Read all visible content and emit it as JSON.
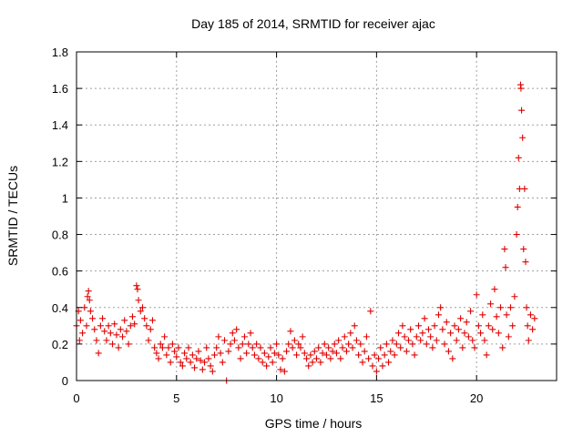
{
  "chart_data": {
    "type": "scatter",
    "title": "Day 185 of 2014, SRMTID for receiver ajac",
    "xlabel": "GPS time / hours",
    "ylabel": "SRMTID / TECUs",
    "xlim": [
      0,
      24
    ],
    "ylim": [
      0,
      1.8
    ],
    "xticks": [
      0,
      5,
      10,
      15,
      20
    ],
    "xtick_labels": [
      "0",
      "5",
      "10",
      "15",
      "20"
    ],
    "yticks": [
      0,
      0.2,
      0.4,
      0.6,
      0.8,
      1.0,
      1.2,
      1.4,
      1.6,
      1.8
    ],
    "ytick_labels": [
      "0",
      "0.2",
      "0.4",
      "0.6",
      "0.8",
      "1",
      "1.2",
      "1.4",
      "1.6",
      "1.8"
    ],
    "grid": true,
    "series": [
      {
        "name": "SRMTID",
        "marker": "plus",
        "color": "#e00000",
        "points": [
          [
            0.0,
            0.3
          ],
          [
            0.1,
            0.38
          ],
          [
            0.15,
            0.22
          ],
          [
            0.2,
            0.33
          ],
          [
            0.3,
            0.26
          ],
          [
            0.4,
            0.4
          ],
          [
            0.5,
            0.3
          ],
          [
            0.55,
            0.46
          ],
          [
            0.6,
            0.49
          ],
          [
            0.65,
            0.44
          ],
          [
            0.7,
            0.38
          ],
          [
            0.8,
            0.34
          ],
          [
            0.9,
            0.28
          ],
          [
            1.0,
            0.22
          ],
          [
            1.1,
            0.15
          ],
          [
            1.2,
            0.3
          ],
          [
            1.3,
            0.34
          ],
          [
            1.4,
            0.27
          ],
          [
            1.5,
            0.22
          ],
          [
            1.6,
            0.3
          ],
          [
            1.7,
            0.26
          ],
          [
            1.8,
            0.2
          ],
          [
            1.9,
            0.31
          ],
          [
            2.0,
            0.25
          ],
          [
            2.1,
            0.18
          ],
          [
            2.2,
            0.28
          ],
          [
            2.3,
            0.24
          ],
          [
            2.4,
            0.33
          ],
          [
            2.5,
            0.27
          ],
          [
            2.6,
            0.2
          ],
          [
            2.7,
            0.3
          ],
          [
            2.8,
            0.35
          ],
          [
            2.9,
            0.31
          ],
          [
            3.0,
            0.52
          ],
          [
            3.05,
            0.5
          ],
          [
            3.1,
            0.44
          ],
          [
            3.2,
            0.38
          ],
          [
            3.3,
            0.4
          ],
          [
            3.4,
            0.34
          ],
          [
            3.5,
            0.3
          ],
          [
            3.6,
            0.22
          ],
          [
            3.7,
            0.28
          ],
          [
            3.8,
            0.33
          ],
          [
            3.9,
            0.18
          ],
          [
            4.0,
            0.15
          ],
          [
            4.1,
            0.12
          ],
          [
            4.2,
            0.2
          ],
          [
            4.3,
            0.18
          ],
          [
            4.4,
            0.24
          ],
          [
            4.5,
            0.14
          ],
          [
            4.6,
            0.18
          ],
          [
            4.7,
            0.1
          ],
          [
            4.8,
            0.2
          ],
          [
            4.9,
            0.16
          ],
          [
            5.0,
            0.13
          ],
          [
            5.1,
            0.18
          ],
          [
            5.2,
            0.1
          ],
          [
            5.3,
            0.08
          ],
          [
            5.4,
            0.15
          ],
          [
            5.5,
            0.12
          ],
          [
            5.6,
            0.18
          ],
          [
            5.7,
            0.1
          ],
          [
            5.8,
            0.14
          ],
          [
            5.9,
            0.07
          ],
          [
            6.0,
            0.12
          ],
          [
            6.1,
            0.16
          ],
          [
            6.2,
            0.11
          ],
          [
            6.3,
            0.06
          ],
          [
            6.4,
            0.1
          ],
          [
            6.5,
            0.18
          ],
          [
            6.6,
            0.12
          ],
          [
            6.7,
            0.08
          ],
          [
            6.8,
            0.05
          ],
          [
            6.9,
            0.14
          ],
          [
            7.0,
            0.18
          ],
          [
            7.1,
            0.24
          ],
          [
            7.2,
            0.15
          ],
          [
            7.3,
            0.1
          ],
          [
            7.4,
            0.22
          ],
          [
            7.5,
            0.0
          ],
          [
            7.6,
            0.16
          ],
          [
            7.7,
            0.2
          ],
          [
            7.8,
            0.26
          ],
          [
            7.9,
            0.22
          ],
          [
            8.0,
            0.28
          ],
          [
            8.1,
            0.18
          ],
          [
            8.2,
            0.12
          ],
          [
            8.3,
            0.2
          ],
          [
            8.4,
            0.24
          ],
          [
            8.5,
            0.15
          ],
          [
            8.6,
            0.2
          ],
          [
            8.7,
            0.26
          ],
          [
            8.8,
            0.18
          ],
          [
            8.9,
            0.14
          ],
          [
            9.0,
            0.2
          ],
          [
            9.1,
            0.12
          ],
          [
            9.2,
            0.18
          ],
          [
            9.3,
            0.1
          ],
          [
            9.4,
            0.15
          ],
          [
            9.5,
            0.08
          ],
          [
            9.6,
            0.13
          ],
          [
            9.7,
            0.18
          ],
          [
            9.8,
            0.1
          ],
          [
            9.9,
            0.15
          ],
          [
            10.0,
            0.2
          ],
          [
            10.1,
            0.14
          ],
          [
            10.2,
            0.06
          ],
          [
            10.3,
            0.12
          ],
          [
            10.4,
            0.05
          ],
          [
            10.5,
            0.16
          ],
          [
            10.6,
            0.2
          ],
          [
            10.7,
            0.27
          ],
          [
            10.8,
            0.18
          ],
          [
            10.9,
            0.22
          ],
          [
            11.0,
            0.14
          ],
          [
            11.1,
            0.2
          ],
          [
            11.2,
            0.18
          ],
          [
            11.3,
            0.24
          ],
          [
            11.4,
            0.15
          ],
          [
            11.5,
            0.12
          ],
          [
            11.6,
            0.08
          ],
          [
            11.7,
            0.14
          ],
          [
            11.8,
            0.1
          ],
          [
            11.9,
            0.16
          ],
          [
            12.0,
            0.12
          ],
          [
            12.1,
            0.18
          ],
          [
            12.2,
            0.1
          ],
          [
            12.3,
            0.15
          ],
          [
            12.4,
            0.2
          ],
          [
            12.5,
            0.14
          ],
          [
            12.6,
            0.18
          ],
          [
            12.7,
            0.12
          ],
          [
            12.8,
            0.16
          ],
          [
            12.9,
            0.2
          ],
          [
            13.0,
            0.15
          ],
          [
            13.1,
            0.22
          ],
          [
            13.2,
            0.12
          ],
          [
            13.3,
            0.18
          ],
          [
            13.4,
            0.24
          ],
          [
            13.5,
            0.16
          ],
          [
            13.6,
            0.2
          ],
          [
            13.7,
            0.26
          ],
          [
            13.8,
            0.18
          ],
          [
            13.9,
            0.3
          ],
          [
            14.0,
            0.22
          ],
          [
            14.1,
            0.14
          ],
          [
            14.2,
            0.2
          ],
          [
            14.3,
            0.1
          ],
          [
            14.4,
            0.16
          ],
          [
            14.5,
            0.24
          ],
          [
            14.6,
            0.12
          ],
          [
            14.7,
            0.38
          ],
          [
            14.8,
            0.08
          ],
          [
            14.9,
            0.14
          ],
          [
            15.0,
            0.05
          ],
          [
            15.1,
            0.12
          ],
          [
            15.2,
            0.18
          ],
          [
            15.3,
            0.08
          ],
          [
            15.4,
            0.14
          ],
          [
            15.5,
            0.2
          ],
          [
            15.6,
            0.1
          ],
          [
            15.7,
            0.16
          ],
          [
            15.8,
            0.22
          ],
          [
            15.9,
            0.14
          ],
          [
            16.0,
            0.2
          ],
          [
            16.1,
            0.26
          ],
          [
            16.2,
            0.18
          ],
          [
            16.3,
            0.3
          ],
          [
            16.4,
            0.24
          ],
          [
            16.5,
            0.16
          ],
          [
            16.6,
            0.22
          ],
          [
            16.7,
            0.28
          ],
          [
            16.8,
            0.2
          ],
          [
            16.9,
            0.14
          ],
          [
            17.0,
            0.24
          ],
          [
            17.1,
            0.3
          ],
          [
            17.2,
            0.22
          ],
          [
            17.3,
            0.26
          ],
          [
            17.4,
            0.34
          ],
          [
            17.5,
            0.2
          ],
          [
            17.6,
            0.28
          ],
          [
            17.7,
            0.24
          ],
          [
            17.8,
            0.18
          ],
          [
            17.9,
            0.3
          ],
          [
            18.0,
            0.22
          ],
          [
            18.1,
            0.36
          ],
          [
            18.2,
            0.4
          ],
          [
            18.3,
            0.28
          ],
          [
            18.4,
            0.2
          ],
          [
            18.5,
            0.32
          ],
          [
            18.6,
            0.16
          ],
          [
            18.7,
            0.26
          ],
          [
            18.8,
            0.12
          ],
          [
            18.9,
            0.3
          ],
          [
            19.0,
            0.22
          ],
          [
            19.1,
            0.28
          ],
          [
            19.2,
            0.34
          ],
          [
            19.3,
            0.18
          ],
          [
            19.4,
            0.26
          ],
          [
            19.5,
            0.32
          ],
          [
            19.6,
            0.24
          ],
          [
            19.7,
            0.38
          ],
          [
            19.8,
            0.22
          ],
          [
            19.9,
            0.18
          ],
          [
            20.0,
            0.47
          ],
          [
            20.1,
            0.3
          ],
          [
            20.2,
            0.26
          ],
          [
            20.3,
            0.36
          ],
          [
            20.4,
            0.22
          ],
          [
            20.5,
            0.14
          ],
          [
            20.6,
            0.3
          ],
          [
            20.7,
            0.42
          ],
          [
            20.8,
            0.28
          ],
          [
            20.9,
            0.5
          ],
          [
            21.0,
            0.35
          ],
          [
            21.1,
            0.26
          ],
          [
            21.2,
            0.4
          ],
          [
            21.3,
            0.18
          ],
          [
            21.4,
            0.72
          ],
          [
            21.45,
            0.62
          ],
          [
            21.5,
            0.36
          ],
          [
            21.6,
            0.24
          ],
          [
            21.7,
            0.4
          ],
          [
            21.8,
            0.3
          ],
          [
            21.9,
            0.46
          ],
          [
            22.0,
            0.8
          ],
          [
            22.05,
            0.95
          ],
          [
            22.1,
            1.22
          ],
          [
            22.15,
            1.05
          ],
          [
            22.2,
            1.62
          ],
          [
            22.22,
            1.6
          ],
          [
            22.25,
            1.48
          ],
          [
            22.3,
            1.33
          ],
          [
            22.35,
            0.72
          ],
          [
            22.4,
            1.05
          ],
          [
            22.45,
            0.65
          ],
          [
            22.5,
            0.4
          ],
          [
            22.55,
            0.3
          ],
          [
            22.6,
            0.22
          ],
          [
            22.7,
            0.36
          ],
          [
            22.8,
            0.28
          ],
          [
            22.9,
            0.34
          ]
        ]
      }
    ]
  }
}
